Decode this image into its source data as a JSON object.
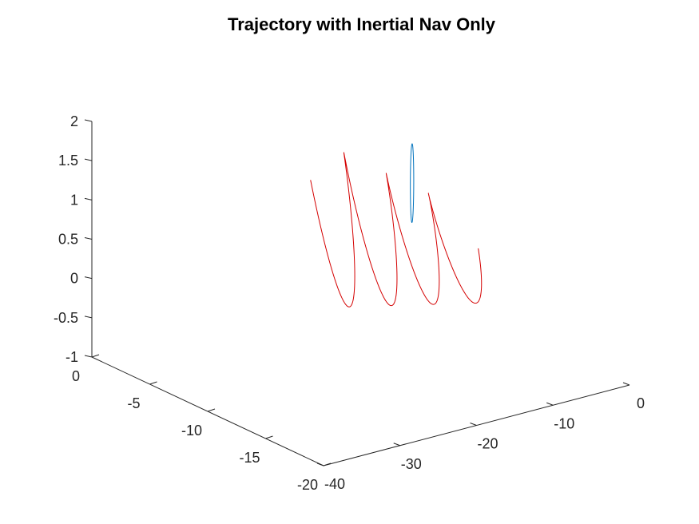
{
  "chart_data": {
    "type": "line3d",
    "title": "Trajectory with Inertial Nav Only",
    "xlim": [
      -40,
      0
    ],
    "ylim": [
      -20,
      0
    ],
    "zlim": [
      -1,
      2
    ],
    "x_ticks": [
      "-40",
      "-30",
      "-20",
      "-10",
      "0"
    ],
    "y_ticks": [
      "0",
      "-5",
      "-10",
      "-15",
      "-20"
    ],
    "z_ticks": [
      "2",
      "1.5",
      "1",
      "0.5",
      "0",
      "-0.5",
      "-1"
    ],
    "grid": false,
    "series": [
      {
        "color": "#d40000",
        "description": "inertial-nav trajectory: helix drifting along the x axis",
        "params": {
          "x0": -8.2,
          "x1": -19.0,
          "y0": -12.0,
          "y1": -6.0,
          "turns": 3.6,
          "zc0": 0.3,
          "zc1": 0.6,
          "zamp": 0.55
        }
      },
      {
        "color": "#0072bd",
        "description": "closed loop trajectory",
        "params": {
          "xc": -9.5,
          "yc": -7.5,
          "zc": 0.95,
          "rx": 0.6,
          "zamp": 0.5
        }
      }
    ],
    "colors": {
      "line_red": "#d40000",
      "line_blue": "#0072bd",
      "axis": "#262626"
    }
  }
}
